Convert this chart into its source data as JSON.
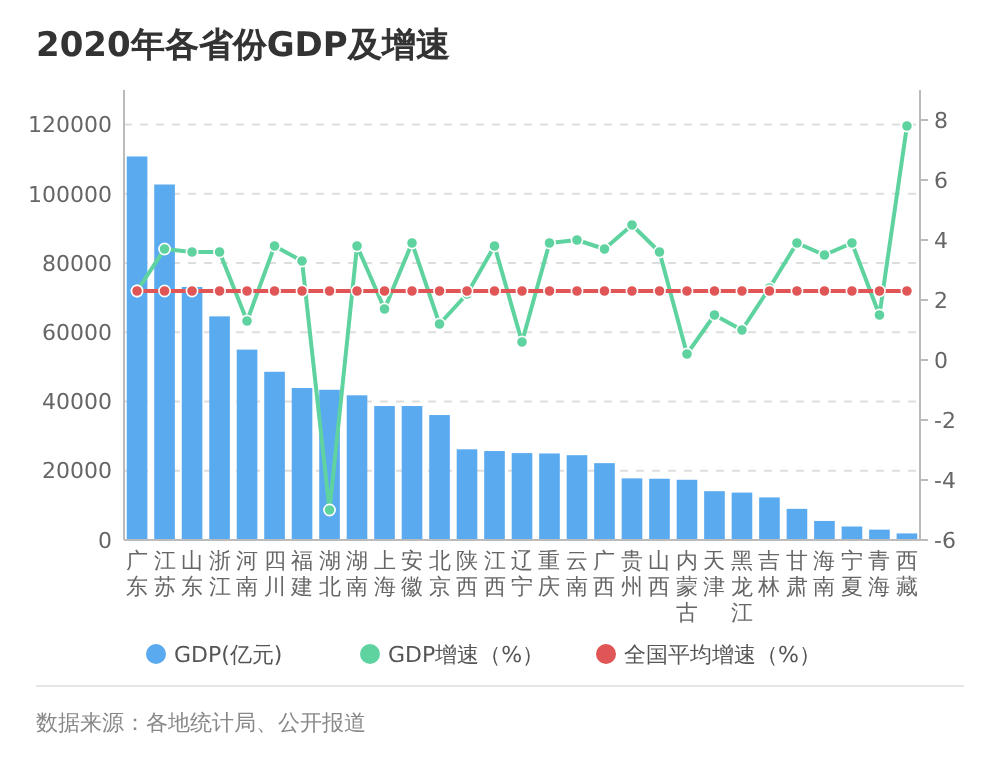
{
  "chart_data": {
    "type": "bar",
    "title": "2020年各省份GDP及增速",
    "categories": [
      "广东",
      "江苏",
      "山东",
      "浙江",
      "河南",
      "四川",
      "福建",
      "湖北",
      "湖南",
      "上海",
      "安徽",
      "北京",
      "陕西",
      "江西",
      "辽宁",
      "重庆",
      "云南",
      "广西",
      "贵州",
      "山西",
      "内蒙古",
      "天津",
      "黑龙江",
      "吉林",
      "甘肃",
      "海南",
      "宁夏",
      "青海",
      "西藏"
    ],
    "series": [
      {
        "name": "GDP(亿元)",
        "color": "#5aaaf0",
        "values": [
          110800,
          102700,
          73100,
          64600,
          55000,
          48600,
          43900,
          43400,
          41800,
          38700,
          38700,
          36100,
          26200,
          25700,
          25100,
          25000,
          24500,
          22200,
          17800,
          17700,
          17400,
          14100,
          13700,
          12300,
          9000,
          5500,
          3900,
          3000,
          1900
        ]
      },
      {
        "name": "GDP增速（%）",
        "color": "#5fd39f",
        "type": "line",
        "axis": "y2",
        "values": [
          2.3,
          3.7,
          3.6,
          3.6,
          1.3,
          3.8,
          3.3,
          -5.0,
          3.8,
          1.7,
          3.9,
          1.2,
          2.2,
          3.8,
          0.6,
          3.9,
          4.0,
          3.7,
          4.5,
          3.6,
          0.2,
          1.5,
          1.0,
          2.4,
          3.9,
          3.5,
          3.9,
          1.5,
          7.8
        ]
      },
      {
        "name": "全国平均增速（%）",
        "color": "#e05555",
        "type": "line",
        "axis": "y2",
        "values": [
          2.3,
          2.3,
          2.3,
          2.3,
          2.3,
          2.3,
          2.3,
          2.3,
          2.3,
          2.3,
          2.3,
          2.3,
          2.3,
          2.3,
          2.3,
          2.3,
          2.3,
          2.3,
          2.3,
          2.3,
          2.3,
          2.3,
          2.3,
          2.3,
          2.3,
          2.3,
          2.3,
          2.3,
          2.3
        ]
      }
    ],
    "ylim": [
      0,
      130000
    ],
    "yticks": [
      0,
      20000,
      40000,
      60000,
      80000,
      100000,
      120000
    ],
    "y2lim": [
      -6,
      9
    ],
    "y2ticks": [
      -6,
      -4,
      -2,
      0,
      2,
      4,
      6,
      8
    ],
    "grid": "y",
    "legend": "bottom",
    "marker": "circle",
    "annotations": [
      "数据来源：各地统计局、公开报道"
    ]
  }
}
